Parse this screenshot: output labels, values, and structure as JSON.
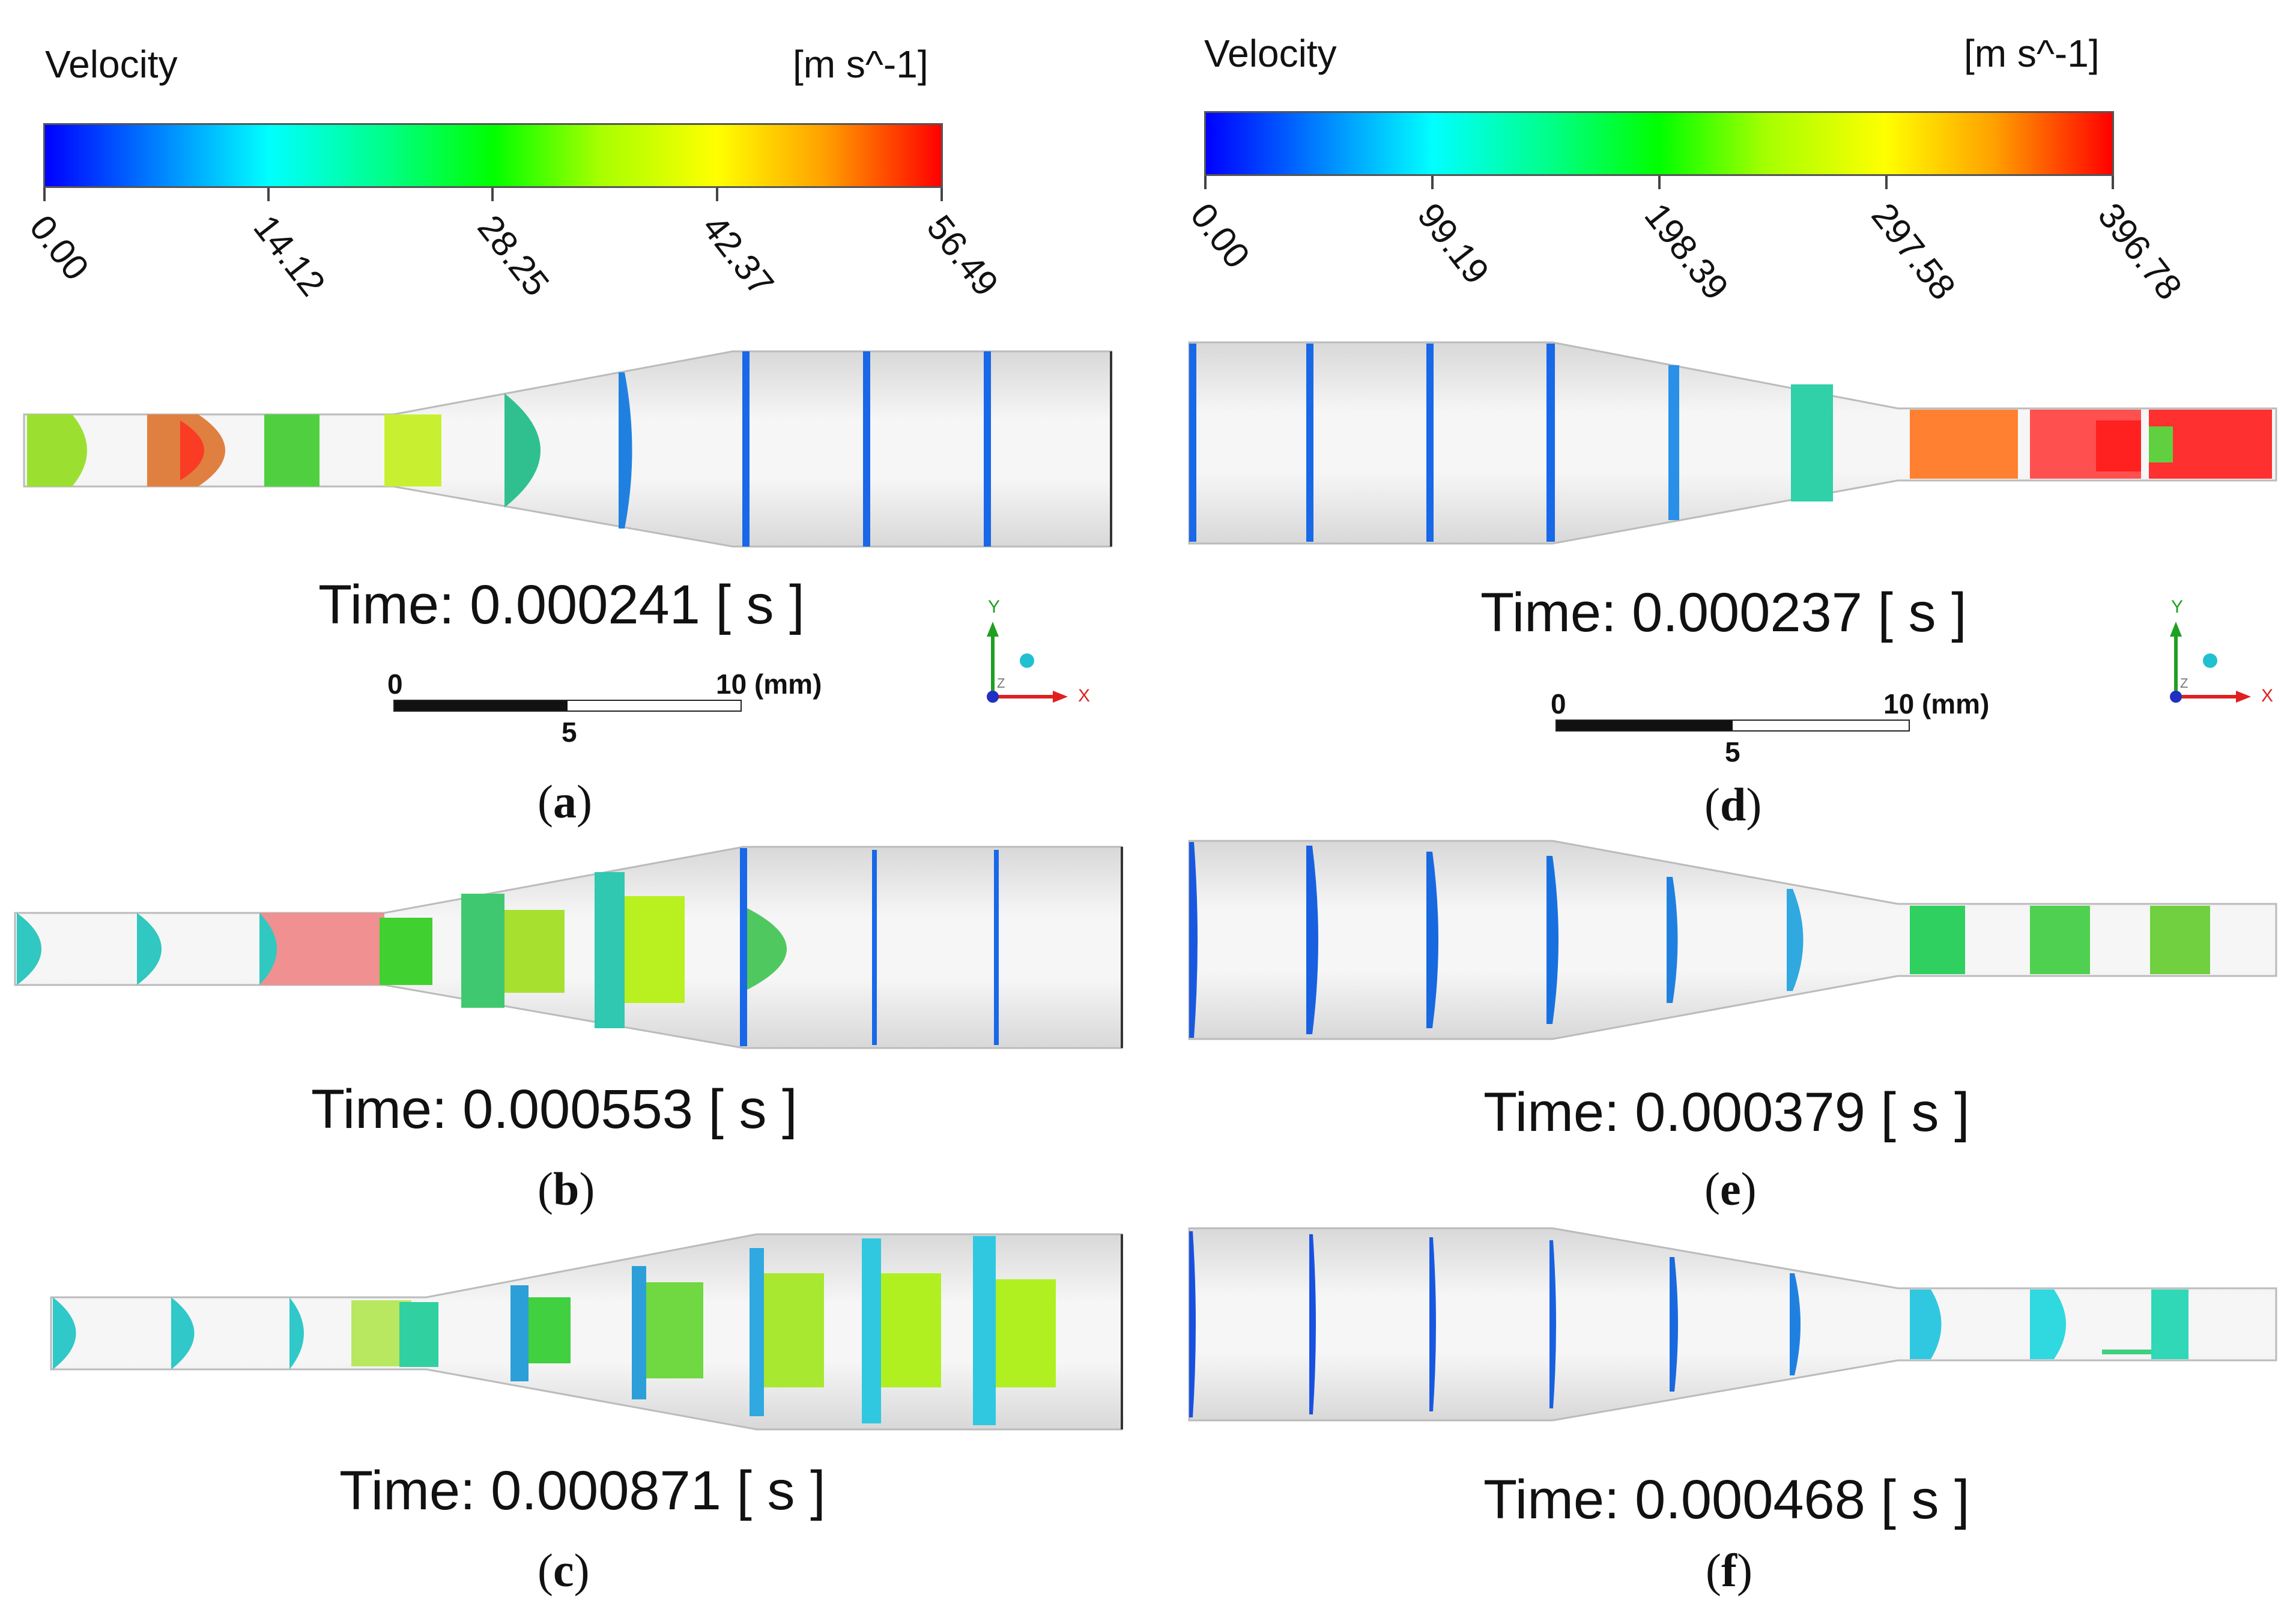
{
  "legend_left": {
    "title": "Velocity",
    "unit": "[m s^-1]",
    "ticks": [
      "0.00",
      "14.12",
      "28.25",
      "42.37",
      "56.49"
    ]
  },
  "legend_right": {
    "title": "Velocity",
    "unit": "[m s^-1]",
    "ticks": [
      "0.00",
      "99.19",
      "198.39",
      "297.58",
      "396.78"
    ]
  },
  "panels": {
    "a": {
      "time": "Time: 0.000241 [ s ]",
      "caption_open": "(",
      "caption_letter": "a",
      "caption_close": ")"
    },
    "b": {
      "time": "Time: 0.000553 [ s ]",
      "caption_open": "(",
      "caption_letter": "b",
      "caption_close": ")"
    },
    "c": {
      "time": "Time: 0.000871 [ s ]",
      "caption_open": "(",
      "caption_letter": "c",
      "caption_close": ")"
    },
    "d": {
      "time": "Time: 0.000237 [ s ]",
      "caption_open": "(",
      "caption_letter": "d",
      "caption_close": ")"
    },
    "e": {
      "time": "Time: 0.000379 [ s ]",
      "caption_open": "(",
      "caption_letter": "e",
      "caption_close": ")"
    },
    "f": {
      "time": "Time: 0.000468 [ s ]",
      "caption_open": "(",
      "caption_letter": "f",
      "caption_close": ")"
    }
  },
  "scale_bar": {
    "zero": "0",
    "mid": "5",
    "end": "10 (mm)"
  },
  "axes": {
    "y": "Y",
    "x": "X",
    "z": "Z"
  },
  "colors": {
    "blue": "#1060e8",
    "light_blue": "#20b0f0",
    "cyan": "#20e0e0",
    "green": "#20d040",
    "yellow_green": "#b0f000",
    "orange": "#ff8020",
    "red": "#ff2020"
  }
}
